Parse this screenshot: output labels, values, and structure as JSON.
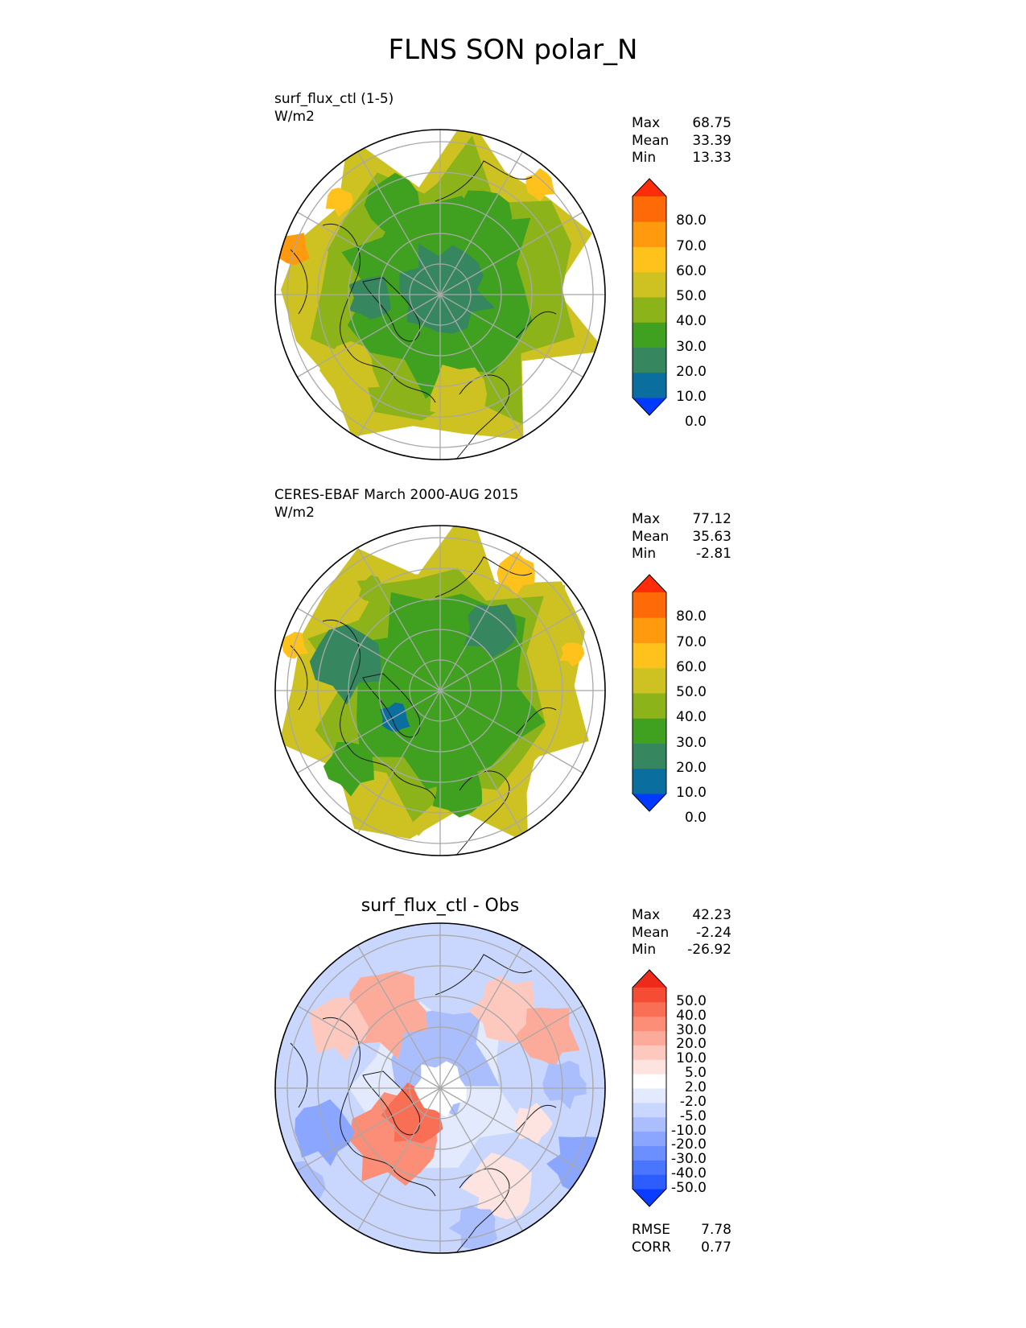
{
  "figure_title": "FLNS SON polar_N",
  "panels": [
    {
      "name": "model",
      "label_line1": "surf_flux_ctl (1-5)",
      "label_line2": "W/m2",
      "center_title": "",
      "stats": [
        {
          "label": "Max",
          "value": "68.75"
        },
        {
          "label": "Mean",
          "value": "33.39"
        },
        {
          "label": "Min",
          "value": "13.33"
        }
      ],
      "colorbar": {
        "tick_labels": [
          "80.0",
          "70.0",
          "60.0",
          "50.0",
          "40.0",
          "30.0",
          "20.0",
          "10.0",
          "0.0"
        ],
        "colors": [
          "#0039ff",
          "#0a6e9e",
          "#368760",
          "#3fa11f",
          "#8db31b",
          "#cdc222",
          "#ffc21c",
          "#ff9a0f",
          "#ff6a08",
          "#ff2c0a"
        ]
      }
    },
    {
      "name": "obs",
      "label_line1": "CERES-EBAF March 2000-AUG 2015",
      "label_line2": "W/m2",
      "center_title": "",
      "stats": [
        {
          "label": "Max",
          "value": "77.12"
        },
        {
          "label": "Mean",
          "value": "35.63"
        },
        {
          "label": "Min",
          "value": "-2.81"
        }
      ],
      "colorbar": {
        "tick_labels": [
          "80.0",
          "70.0",
          "60.0",
          "50.0",
          "40.0",
          "30.0",
          "20.0",
          "10.0",
          "0.0"
        ],
        "colors": [
          "#0039ff",
          "#0a6e9e",
          "#368760",
          "#3fa11f",
          "#8db31b",
          "#cdc222",
          "#ffc21c",
          "#ff9a0f",
          "#ff6a08",
          "#ff2c0a"
        ]
      }
    },
    {
      "name": "diff",
      "label_line1": "",
      "label_line2": "",
      "center_title": "surf_flux_ctl - Obs",
      "stats": [
        {
          "label": "Max",
          "value": "42.23"
        },
        {
          "label": "Mean",
          "value": "-2.24"
        },
        {
          "label": "Min",
          "value": "-26.92"
        }
      ],
      "colorbar": {
        "tick_labels": [
          "50.0",
          "40.0",
          "30.0",
          "20.0",
          "10.0",
          "5.0",
          "2.0",
          "-2.0",
          "-5.0",
          "-10.0",
          "-20.0",
          "-30.0",
          "-40.0",
          "-50.0"
        ],
        "colors": [
          "#0a3cff",
          "#2d5cff",
          "#4a76ff",
          "#6b8fff",
          "#8aa6ff",
          "#aabefe",
          "#c9d6fd",
          "#e3eafd",
          "#ffffff",
          "#fde4e0",
          "#fdc9bf",
          "#fcab9a",
          "#fc8d76",
          "#f96f56",
          "#f44c35",
          "#ee2a1a"
        ]
      },
      "footer_stats": [
        {
          "label": "RMSE",
          "value": "7.78"
        },
        {
          "label": "CORR",
          "value": "0.77"
        }
      ]
    }
  ]
}
